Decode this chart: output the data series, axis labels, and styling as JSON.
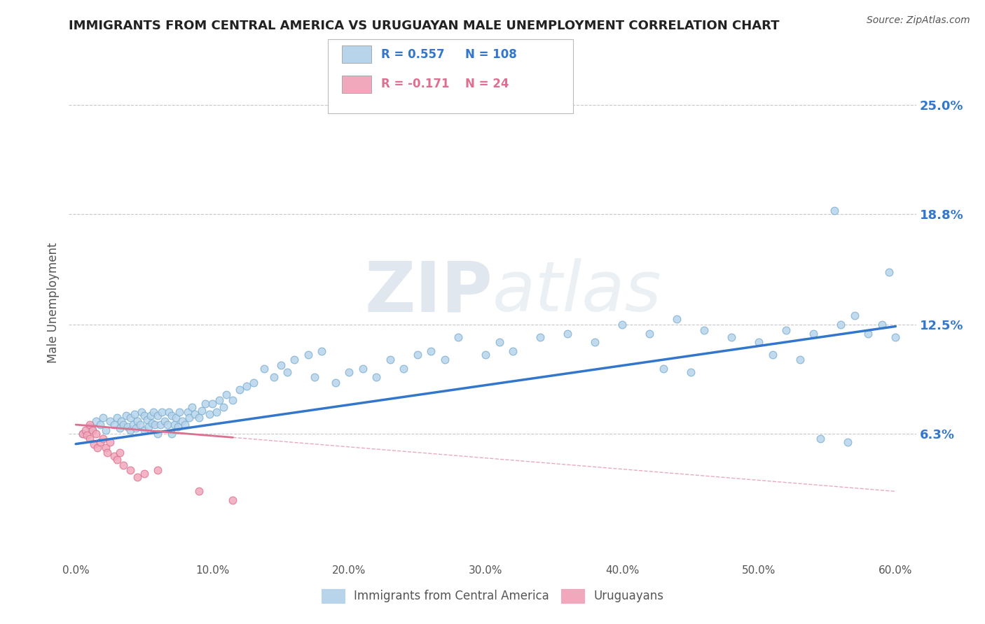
{
  "title": "IMMIGRANTS FROM CENTRAL AMERICA VS URUGUAYAN MALE UNEMPLOYMENT CORRELATION CHART",
  "source": "Source: ZipAtlas.com",
  "ylabel": "Male Unemployment",
  "xlim": [
    -0.005,
    0.615
  ],
  "ylim": [
    -0.01,
    0.285
  ],
  "yticks": [
    0.063,
    0.125,
    0.188,
    0.25
  ],
  "ytick_labels": [
    "6.3%",
    "12.5%",
    "18.8%",
    "25.0%"
  ],
  "xticks": [
    0.0,
    0.1,
    0.2,
    0.3,
    0.4,
    0.5,
    0.6
  ],
  "xtick_labels": [
    "0.0%",
    "10.0%",
    "20.0%",
    "30.0%",
    "40.0%",
    "50.0%",
    "60.0%"
  ],
  "legend_series": [
    {
      "label": "Immigrants from Central America",
      "color": "#b8d4ea",
      "R": "0.557",
      "N": "108"
    },
    {
      "label": "Uruguayans",
      "color": "#f2a8bc",
      "R": "-0.171",
      "N": "24"
    }
  ],
  "blue_scatter_x": [
    0.005,
    0.01,
    0.012,
    0.015,
    0.018,
    0.02,
    0.022,
    0.025,
    0.028,
    0.03,
    0.032,
    0.033,
    0.035,
    0.037,
    0.038,
    0.04,
    0.04,
    0.042,
    0.043,
    0.044,
    0.045,
    0.047,
    0.048,
    0.05,
    0.05,
    0.052,
    0.053,
    0.055,
    0.056,
    0.057,
    0.058,
    0.06,
    0.06,
    0.062,
    0.063,
    0.065,
    0.067,
    0.068,
    0.07,
    0.07,
    0.072,
    0.073,
    0.075,
    0.076,
    0.078,
    0.08,
    0.082,
    0.083,
    0.085,
    0.087,
    0.09,
    0.092,
    0.095,
    0.098,
    0.1,
    0.103,
    0.105,
    0.108,
    0.11,
    0.115,
    0.12,
    0.125,
    0.13,
    0.138,
    0.145,
    0.15,
    0.155,
    0.16,
    0.17,
    0.175,
    0.18,
    0.19,
    0.2,
    0.21,
    0.22,
    0.23,
    0.24,
    0.25,
    0.26,
    0.27,
    0.28,
    0.3,
    0.31,
    0.32,
    0.34,
    0.36,
    0.38,
    0.4,
    0.42,
    0.44,
    0.46,
    0.48,
    0.5,
    0.52,
    0.54,
    0.555,
    0.56,
    0.57,
    0.58,
    0.59,
    0.595,
    0.6,
    0.43,
    0.45,
    0.51,
    0.53,
    0.545,
    0.565
  ],
  "blue_scatter_y": [
    0.063,
    0.067,
    0.065,
    0.07,
    0.068,
    0.072,
    0.065,
    0.07,
    0.068,
    0.072,
    0.066,
    0.07,
    0.068,
    0.073,
    0.067,
    0.065,
    0.072,
    0.068,
    0.074,
    0.066,
    0.07,
    0.068,
    0.075,
    0.065,
    0.073,
    0.071,
    0.067,
    0.073,
    0.069,
    0.075,
    0.068,
    0.063,
    0.073,
    0.068,
    0.075,
    0.07,
    0.068,
    0.075,
    0.063,
    0.073,
    0.068,
    0.072,
    0.067,
    0.075,
    0.07,
    0.068,
    0.075,
    0.072,
    0.078,
    0.074,
    0.072,
    0.076,
    0.08,
    0.074,
    0.08,
    0.075,
    0.082,
    0.078,
    0.085,
    0.082,
    0.088,
    0.09,
    0.092,
    0.1,
    0.095,
    0.102,
    0.098,
    0.105,
    0.108,
    0.095,
    0.11,
    0.092,
    0.098,
    0.1,
    0.095,
    0.105,
    0.1,
    0.108,
    0.11,
    0.105,
    0.118,
    0.108,
    0.115,
    0.11,
    0.118,
    0.12,
    0.115,
    0.125,
    0.12,
    0.128,
    0.122,
    0.118,
    0.115,
    0.122,
    0.12,
    0.19,
    0.125,
    0.13,
    0.12,
    0.125,
    0.155,
    0.118,
    0.1,
    0.098,
    0.108,
    0.105,
    0.06,
    0.058
  ],
  "blue_line_x": [
    0.0,
    0.6
  ],
  "blue_line_y": [
    0.057,
    0.124
  ],
  "pink_scatter_x": [
    0.005,
    0.007,
    0.008,
    0.01,
    0.01,
    0.012,
    0.013,
    0.015,
    0.016,
    0.018,
    0.02,
    0.022,
    0.023,
    0.025,
    0.028,
    0.03,
    0.032,
    0.035,
    0.04,
    0.045,
    0.05,
    0.06,
    0.09,
    0.115
  ],
  "pink_scatter_y": [
    0.063,
    0.065,
    0.062,
    0.068,
    0.06,
    0.065,
    0.057,
    0.063,
    0.055,
    0.058,
    0.06,
    0.055,
    0.052,
    0.058,
    0.05,
    0.048,
    0.052,
    0.045,
    0.042,
    0.038,
    0.04,
    0.042,
    0.03,
    0.025
  ],
  "pink_line_x": [
    0.0,
    0.6
  ],
  "pink_line_y": [
    0.068,
    0.03
  ],
  "watermark_zip": "ZIP",
  "watermark_atlas": "atlas",
  "background_color": "#ffffff",
  "grid_color": "#c8c8c8",
  "title_color": "#222222",
  "blue_scatter_color": "#b8d4ea",
  "blue_scatter_edge": "#7aaed0",
  "pink_scatter_color": "#f2a8bc",
  "pink_scatter_edge": "#dd7090",
  "blue_line_color": "#3377cc",
  "pink_line_color": "#dd7090",
  "axis_label_color": "#555555",
  "tick_label_color": "#555555",
  "right_tick_color": "#3377cc"
}
